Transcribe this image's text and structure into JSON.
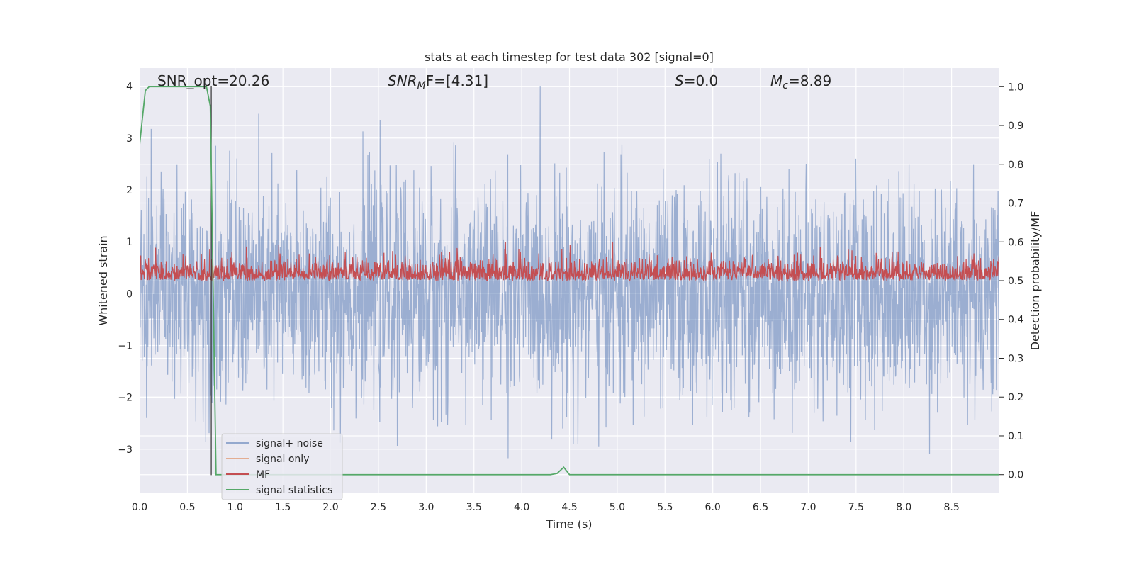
{
  "chart_data": {
    "type": "line",
    "title": "stats at each timestep for test data 302 [signal=0]",
    "xlabel": "Time (s)",
    "ylabel": "Whitened strain",
    "y2label": "Detection probability/MF",
    "xlim": [
      0.0,
      9.0
    ],
    "ylim": [
      -3.85,
      4.35
    ],
    "y2lim": [
      -0.048,
      1.048
    ],
    "xticks": [
      "0.0",
      "0.5",
      "1.0",
      "1.5",
      "2.0",
      "2.5",
      "3.0",
      "3.5",
      "4.0",
      "4.5",
      "5.0",
      "5.5",
      "6.0",
      "6.5",
      "7.0",
      "7.5",
      "8.0",
      "8.5"
    ],
    "yticks": [
      "4",
      "3",
      "2",
      "1",
      "0",
      "−1",
      "−2",
      "−3"
    ],
    "y2ticks": [
      "1.0",
      "0.9",
      "0.8",
      "0.7",
      "0.6",
      "0.5",
      "0.4",
      "0.3",
      "0.2",
      "0.1",
      "0.0"
    ],
    "grid": true,
    "legend_position": "lower-left",
    "annotations": {
      "snr_opt": "SNR_opt=20.26",
      "snr_mf_base": "SNR",
      "snr_mf_sub": "M",
      "snr_mf_rest": "F=[4.31]",
      "s_italic": "S",
      "s_value": "=0.0",
      "mc_italic": "M",
      "mc_sub": "c",
      "mc_value": "=8.89"
    },
    "series": [
      {
        "name": "signal+ noise",
        "color": "#4c72b0",
        "axis": "left",
        "description_range": [
          -3.5,
          4.0
        ]
      },
      {
        "name": "signal only",
        "color": "#dd8452",
        "axis": "left",
        "values": []
      },
      {
        "name": "MF",
        "color": "#c44e52",
        "axis": "right",
        "description_range": [
          0.48,
          0.6
        ]
      },
      {
        "name": "signal statistics",
        "color": "#55a868",
        "axis": "right",
        "x": [
          0.0,
          0.06,
          0.1,
          0.2,
          0.3,
          0.4,
          0.5,
          0.6,
          0.7,
          0.74,
          0.8,
          1.0,
          2.0,
          3.0,
          4.0,
          4.3,
          4.37,
          4.44,
          4.5,
          5.0,
          6.0,
          7.0,
          8.0,
          9.0
        ],
        "values": [
          0.85,
          0.99,
          1.0,
          1.0,
          1.0,
          1.0,
          1.0,
          1.0,
          1.0,
          0.95,
          0.0,
          0.0,
          0.0,
          0.0,
          0.0,
          0.0,
          0.003,
          0.019,
          0.0,
          0.0,
          0.0,
          0.0,
          0.0,
          0.0
        ]
      }
    ],
    "vline_x": 0.75,
    "vline_color": "#333333"
  }
}
